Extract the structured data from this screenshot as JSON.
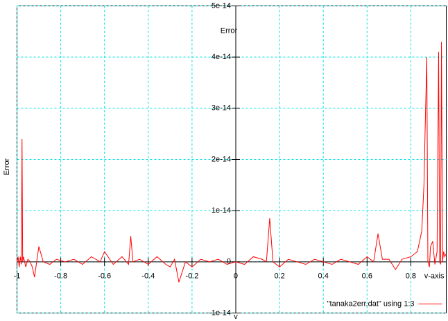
{
  "chart_data": {
    "type": "line",
    "ylabel": "Error",
    "y_axis_label": "Error",
    "xlabel": "v",
    "x_axis_label": "v-axis",
    "x": [
      -1,
      -0.995,
      -0.99,
      -0.985,
      -0.98,
      -0.977,
      -0.974,
      -0.97,
      -0.96,
      -0.95,
      -0.94,
      -0.93,
      -0.92,
      -0.9,
      -0.88,
      -0.85,
      -0.82,
      -0.78,
      -0.74,
      -0.7,
      -0.66,
      -0.62,
      -0.6,
      -0.56,
      -0.52,
      -0.49,
      -0.48,
      -0.47,
      -0.44,
      -0.4,
      -0.36,
      -0.32,
      -0.3,
      -0.28,
      -0.26,
      -0.23,
      -0.2,
      -0.16,
      -0.12,
      -0.08,
      -0.04,
      0,
      0.04,
      0.08,
      0.12,
      0.14,
      0.155,
      0.17,
      0.2,
      0.24,
      0.28,
      0.32,
      0.36,
      0.4,
      0.44,
      0.48,
      0.52,
      0.56,
      0.6,
      0.63,
      0.65,
      0.67,
      0.7,
      0.73,
      0.76,
      0.8,
      0.83,
      0.85,
      0.86,
      0.865,
      0.873,
      0.878,
      0.885,
      0.89,
      0.9,
      0.91,
      0.92,
      0.927,
      0.932,
      0.936,
      0.94,
      0.945,
      0.95,
      0.955,
      0.96
    ],
    "series": [
      {
        "name": "\"tanaka2err.dat\" using 1:3",
        "color": "#ff0000",
        "values": [
          0,
          1e-15,
          -1e-15,
          1e-15,
          -5e-16,
          2.4e-14,
          0,
          1e-15,
          -1e-15,
          5e-16,
          0,
          -1e-15,
          -3e-15,
          3e-15,
          0,
          -5e-16,
          5e-16,
          0,
          5e-16,
          -5e-16,
          1e-15,
          0,
          2e-15,
          -5e-16,
          1e-15,
          -5e-16,
          5e-15,
          0,
          5e-16,
          -5e-16,
          1e-15,
          -5e-16,
          -1e-15,
          5e-16,
          -4e-15,
          0,
          -1e-15,
          5e-16,
          0,
          5e-16,
          -5e-16,
          0,
          -5e-16,
          1e-15,
          5e-16,
          0,
          8.5e-15,
          0,
          -1e-15,
          5e-16,
          0,
          -5e-16,
          5e-16,
          0,
          -5e-16,
          5e-16,
          0,
          -5e-16,
          1e-15,
          0,
          5.5e-15,
          5e-16,
          5e-16,
          -1.5e-15,
          5e-16,
          1e-15,
          2e-15,
          6e-15,
          1.5e-14,
          2.5e-14,
          4e-14,
          0,
          -1e-15,
          3e-15,
          4e-15,
          -5e-16,
          2e-15,
          4.1e-14,
          0,
          -5e-16,
          4.3e-14,
          0,
          2e-15,
          1e-15,
          1.5e-15
        ]
      }
    ],
    "xlim": [
      -1,
      0.962
    ],
    "ylim": [
      -1e-14,
      5e-14
    ],
    "xticks": [
      -1,
      -0.8,
      -0.6,
      -0.4,
      -0.2,
      0,
      0.2,
      0.4,
      0.6,
      0.8
    ],
    "yticks": [
      -1e-14,
      0,
      1e-14,
      2e-14,
      3e-14,
      4e-14,
      5e-14
    ],
    "grid": true,
    "grid_color": "#00e0e0",
    "legend": "lower right"
  }
}
